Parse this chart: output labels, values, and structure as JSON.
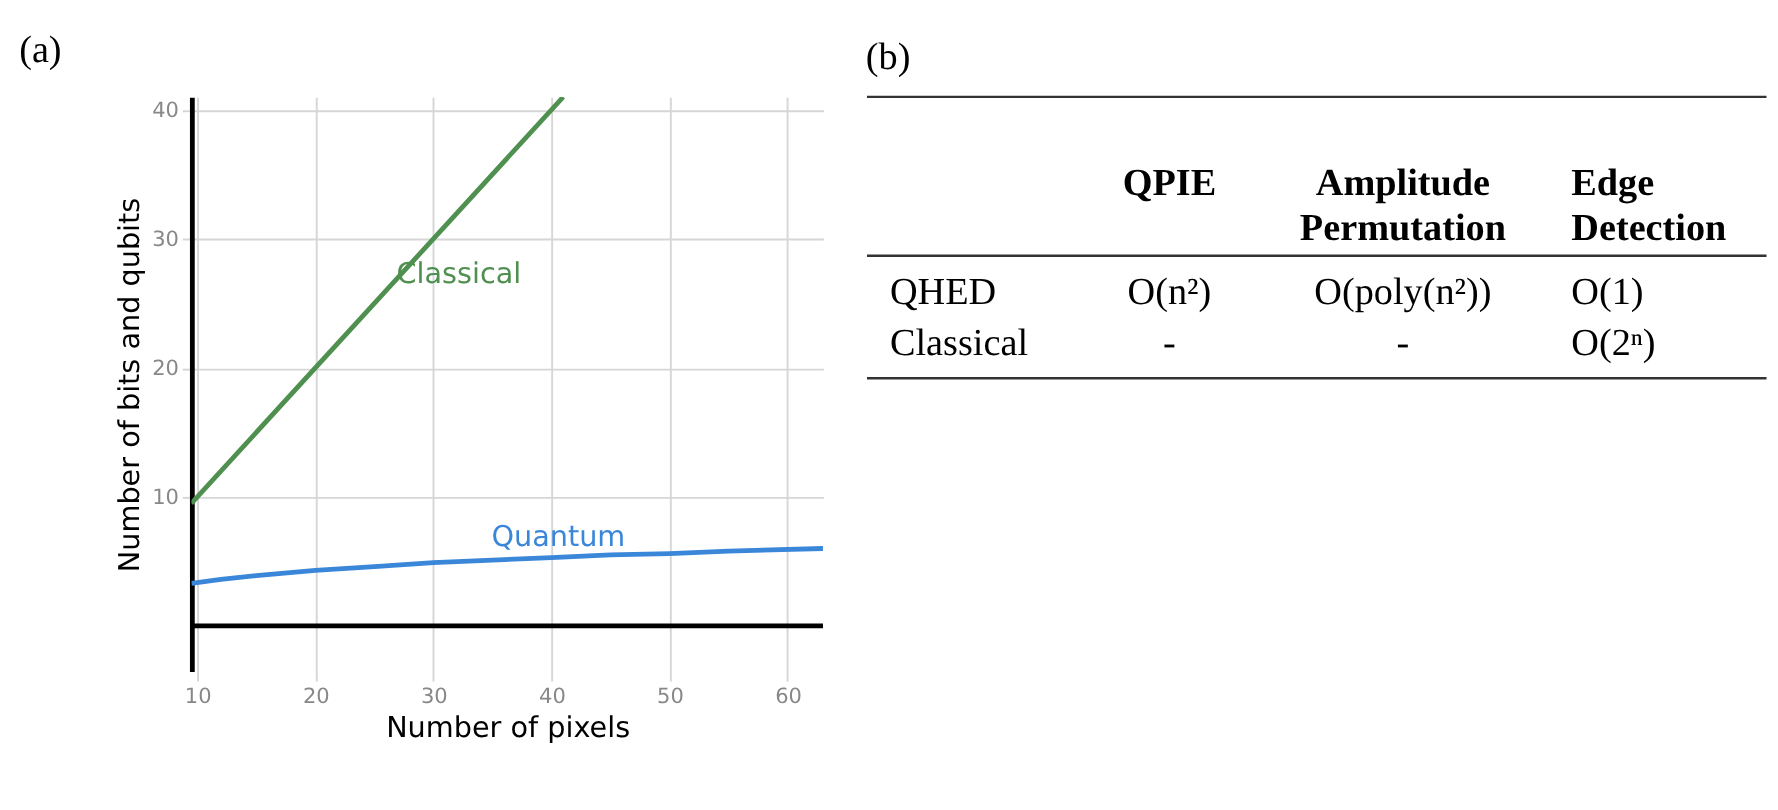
{
  "chart_data": [
    {
      "type": "line",
      "title": "(a)",
      "xlabel": "Number of pixels",
      "ylabel": "Number of bits and qubits",
      "series": [
        {
          "name": "Classical",
          "color": "#4f8f4f",
          "x": [
            9.5,
            41
          ],
          "values": [
            9.5,
            41
          ]
        },
        {
          "name": "Quantum",
          "color": "#3a86d8",
          "x": [
            9.5,
            12,
            15,
            20,
            25,
            30,
            35,
            40,
            45,
            50,
            55,
            63
          ],
          "values": [
            3.3,
            3.6,
            3.9,
            4.3,
            4.6,
            4.9,
            5.1,
            5.3,
            5.5,
            5.6,
            5.8,
            6.0
          ]
        }
      ],
      "xlim": [
        9.5,
        63
      ],
      "ylim": [
        -3.5,
        41
      ],
      "xticks": [
        10,
        20,
        30,
        40,
        50,
        60
      ],
      "yticks": [
        10,
        20,
        30,
        40
      ],
      "grid": true,
      "legend": false,
      "marker": "none",
      "line_style": "solid",
      "ref_lines": [
        {
          "axis": "y",
          "value": 0,
          "color": "#000000"
        }
      ]
    },
    {
      "type": "other",
      "title": "(b)",
      "categories": [
        null,
        "QPIE",
        "Amplitude Permutation",
        "Edge Detection"
      ],
      "y_categories": [
        "QHED",
        "Classical"
      ],
      "cell_labels": [
        [
          "O(n²)",
          "O(poly(n²))",
          "O(1)"
        ],
        [
          "-",
          "-",
          "O(2ⁿ)"
        ]
      ]
    }
  ]
}
